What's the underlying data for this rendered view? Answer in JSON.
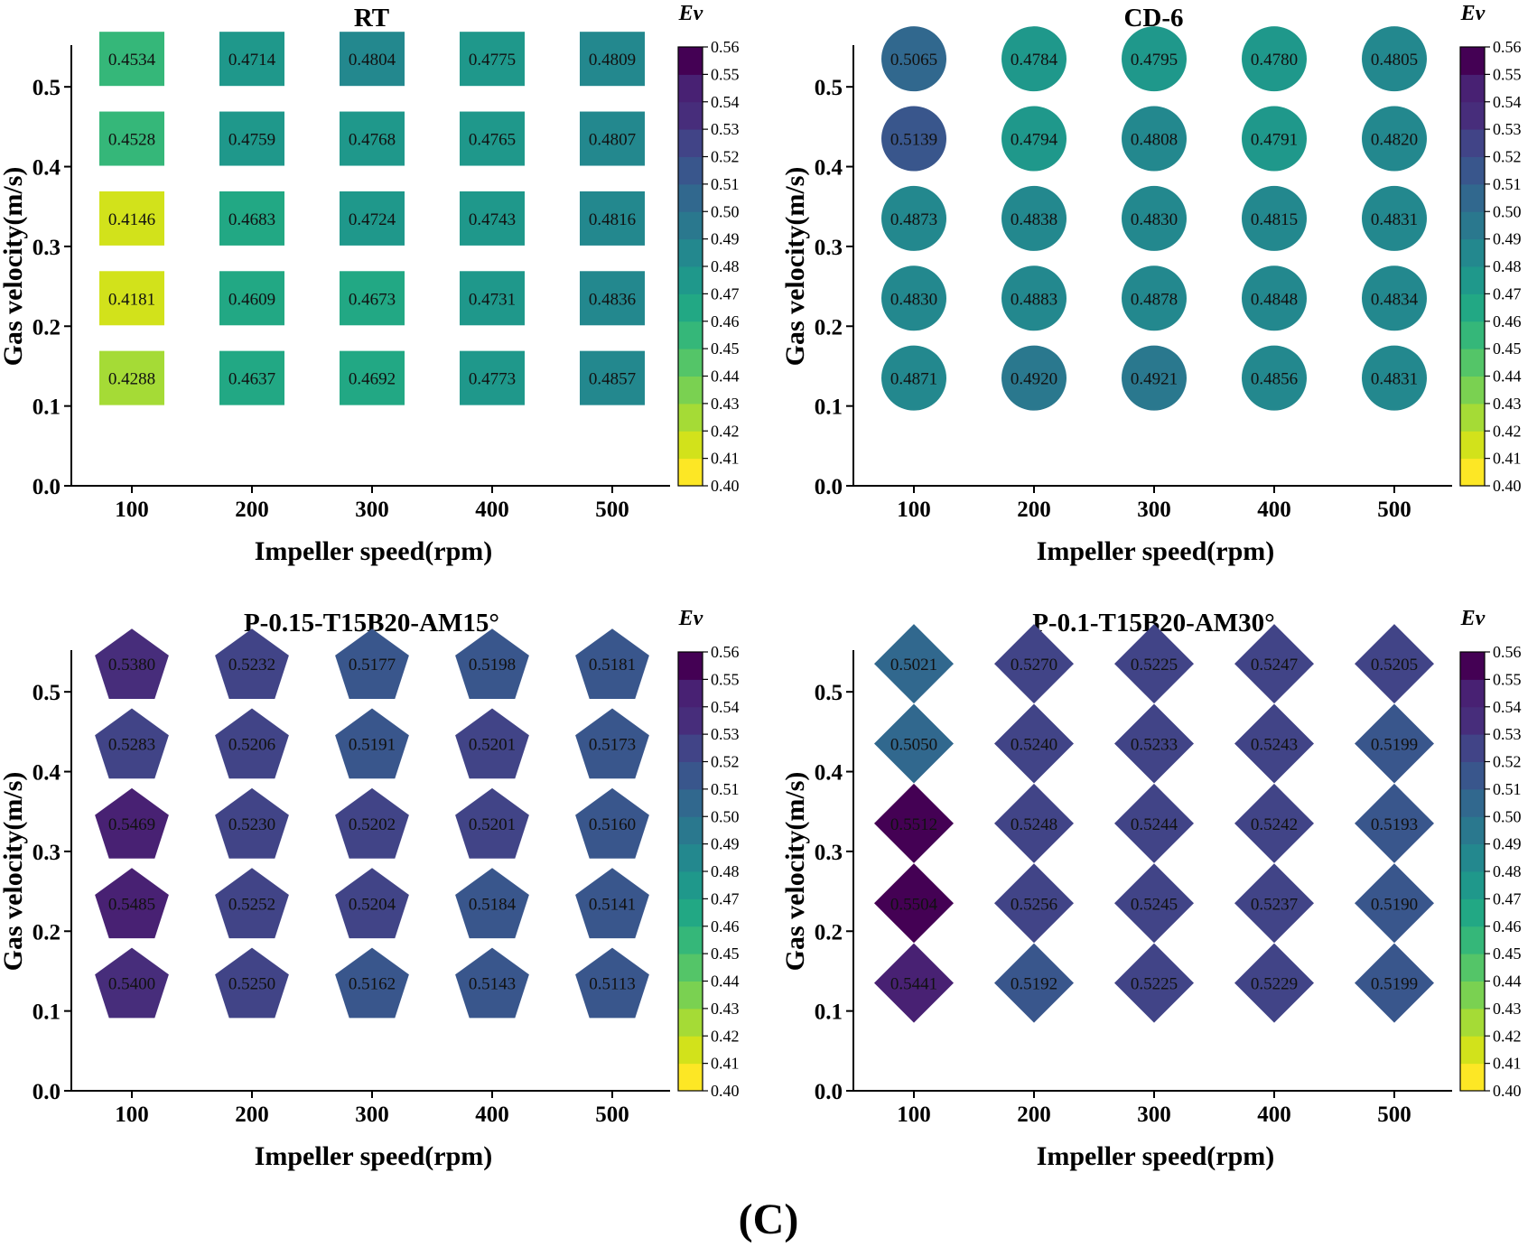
{
  "figure_label": "(C)",
  "colors": {
    "colormap": [
      "#fde725",
      "#d2e21b",
      "#a5db36",
      "#7ad151",
      "#54c568",
      "#35b779",
      "#22a884",
      "#1f988b",
      "#23888e",
      "#2a788e",
      "#31688e",
      "#39568c",
      "#414487",
      "#472d7b",
      "#482173",
      "#440154"
    ]
  },
  "chart_data": [
    {
      "type": "heatmap",
      "marker": "square",
      "title": "RT",
      "xlabel": "Impeller speed(rpm)",
      "ylabel": "Gas velocity(m/s)",
      "x_ticks": [
        "100",
        "200",
        "300",
        "400",
        "500"
      ],
      "y_ticks": [
        "0.0",
        "0.1",
        "0.2",
        "0.3",
        "0.4",
        "0.5"
      ],
      "ylim": [
        0,
        0.55
      ],
      "colorbar_title": "Ev",
      "colorbar_range": [
        0.4,
        0.56
      ],
      "colorbar_ticks": [
        "0.56",
        "0.55",
        "0.54",
        "0.53",
        "0.52",
        "0.51",
        "0.50",
        "0.49",
        "0.48",
        "0.47",
        "0.46",
        "0.45",
        "0.44",
        "0.43",
        "0.42",
        "0.41",
        "0.40"
      ],
      "rows": [
        {
          "y": 0.5,
          "values": [
            "0.4534",
            "0.4714",
            "0.4804",
            "0.4775",
            "0.4809"
          ]
        },
        {
          "y": 0.4,
          "values": [
            "0.4528",
            "0.4759",
            "0.4768",
            "0.4765",
            "0.4807"
          ]
        },
        {
          "y": 0.3,
          "values": [
            "0.4146",
            "0.4683",
            "0.4724",
            "0.4743",
            "0.4816"
          ]
        },
        {
          "y": 0.2,
          "values": [
            "0.4181",
            "0.4609",
            "0.4673",
            "0.4731",
            "0.4836"
          ]
        },
        {
          "y": 0.1,
          "values": [
            "0.4288",
            "0.4637",
            "0.4692",
            "0.4773",
            "0.4857"
          ]
        }
      ]
    },
    {
      "type": "heatmap",
      "marker": "circle",
      "title": "CD-6",
      "xlabel": "Impeller speed(rpm)",
      "ylabel": "Gas velocity(m/s)",
      "x_ticks": [
        "100",
        "200",
        "300",
        "400",
        "500"
      ],
      "y_ticks": [
        "0.0",
        "0.1",
        "0.2",
        "0.3",
        "0.4",
        "0.5"
      ],
      "ylim": [
        0,
        0.55
      ],
      "colorbar_title": "Ev",
      "colorbar_range": [
        0.4,
        0.56
      ],
      "colorbar_ticks": [
        "0.56",
        "0.55",
        "0.54",
        "0.53",
        "0.52",
        "0.51",
        "0.50",
        "0.49",
        "0.48",
        "0.47",
        "0.46",
        "0.45",
        "0.44",
        "0.43",
        "0.42",
        "0.41",
        "0.40"
      ],
      "rows": [
        {
          "y": 0.5,
          "values": [
            "0.5065",
            "0.4784",
            "0.4795",
            "0.4780",
            "0.4805"
          ]
        },
        {
          "y": 0.4,
          "values": [
            "0.5139",
            "0.4794",
            "0.4808",
            "0.4791",
            "0.4820"
          ]
        },
        {
          "y": 0.3,
          "values": [
            "0.4873",
            "0.4838",
            "0.4830",
            "0.4815",
            "0.4831"
          ]
        },
        {
          "y": 0.2,
          "values": [
            "0.4830",
            "0.4883",
            "0.4878",
            "0.4848",
            "0.4834"
          ]
        },
        {
          "y": 0.1,
          "values": [
            "0.4871",
            "0.4920",
            "0.4921",
            "0.4856",
            "0.4831"
          ]
        }
      ]
    },
    {
      "type": "heatmap",
      "marker": "pentagon",
      "title": "P-0.15-T15B20-AM15°",
      "xlabel": "Impeller speed(rpm)",
      "ylabel": "Gas velocity(m/s)",
      "x_ticks": [
        "100",
        "200",
        "300",
        "400",
        "500"
      ],
      "y_ticks": [
        "0.0",
        "0.1",
        "0.2",
        "0.3",
        "0.4",
        "0.5"
      ],
      "ylim": [
        0,
        0.55
      ],
      "colorbar_title": "Ev",
      "colorbar_range": [
        0.4,
        0.56
      ],
      "colorbar_ticks": [
        "0.56",
        "0.55",
        "0.54",
        "0.53",
        "0.52",
        "0.51",
        "0.50",
        "0.49",
        "0.48",
        "0.47",
        "0.46",
        "0.45",
        "0.44",
        "0.43",
        "0.42",
        "0.41",
        "0.40"
      ],
      "rows": [
        {
          "y": 0.5,
          "values": [
            "0.5380",
            "0.5232",
            "0.5177",
            "0.5198",
            "0.5181"
          ]
        },
        {
          "y": 0.4,
          "values": [
            "0.5283",
            "0.5206",
            "0.5191",
            "0.5201",
            "0.5173"
          ]
        },
        {
          "y": 0.3,
          "values": [
            "0.5469",
            "0.5230",
            "0.5202",
            "0.5201",
            "0.5160"
          ]
        },
        {
          "y": 0.2,
          "values": [
            "0.5485",
            "0.5252",
            "0.5204",
            "0.5184",
            "0.5141"
          ]
        },
        {
          "y": 0.1,
          "values": [
            "0.5400",
            "0.5250",
            "0.5162",
            "0.5143",
            "0.5113"
          ]
        }
      ]
    },
    {
      "type": "heatmap",
      "marker": "diamond",
      "title": "P-0.1-T15B20-AM30°",
      "xlabel": "Impeller speed(rpm)",
      "ylabel": "Gas velocity(m/s)",
      "x_ticks": [
        "100",
        "200",
        "300",
        "400",
        "500"
      ],
      "y_ticks": [
        "0.0",
        "0.1",
        "0.2",
        "0.3",
        "0.4",
        "0.5"
      ],
      "ylim": [
        0,
        0.55
      ],
      "colorbar_title": "Ev",
      "colorbar_range": [
        0.4,
        0.56
      ],
      "colorbar_ticks": [
        "0.56",
        "0.55",
        "0.54",
        "0.53",
        "0.52",
        "0.51",
        "0.50",
        "0.49",
        "0.48",
        "0.47",
        "0.46",
        "0.45",
        "0.44",
        "0.43",
        "0.42",
        "0.41",
        "0.40"
      ],
      "rows": [
        {
          "y": 0.5,
          "values": [
            "0.5021",
            "0.5270",
            "0.5225",
            "0.5247",
            "0.5205"
          ]
        },
        {
          "y": 0.4,
          "values": [
            "0.5050",
            "0.5240",
            "0.5233",
            "0.5243",
            "0.5199"
          ]
        },
        {
          "y": 0.3,
          "values": [
            "0.5512",
            "0.5248",
            "0.5244",
            "0.5242",
            "0.5193"
          ]
        },
        {
          "y": 0.2,
          "values": [
            "0.5504",
            "0.5256",
            "0.5245",
            "0.5237",
            "0.5190"
          ]
        },
        {
          "y": 0.1,
          "values": [
            "0.5441",
            "0.5192",
            "0.5225",
            "0.5229",
            "0.5199"
          ]
        }
      ]
    }
  ]
}
